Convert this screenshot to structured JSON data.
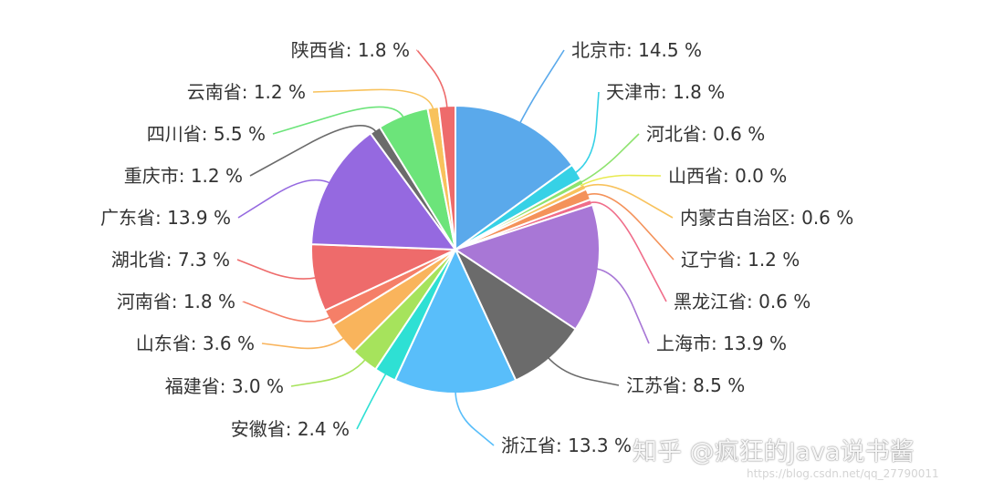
{
  "chart_data": {
    "type": "pie",
    "start_angle_deg": 90,
    "direction": "clockwise",
    "slices": [
      {
        "name": "北京市",
        "value": 14.5,
        "label": "北京市: 14.5 %",
        "color": "#5aa9eb"
      },
      {
        "name": "天津市",
        "value": 1.8,
        "label": "天津市: 1.8 %",
        "color": "#36d1e6"
      },
      {
        "name": "河北省",
        "value": 0.6,
        "label": "河北省: 0.6 %",
        "color": "#8ee36f"
      },
      {
        "name": "山西省",
        "value": 0.0,
        "label": "山西省: 0.0 %",
        "color": "#e8ea4f"
      },
      {
        "name": "内蒙古自治区",
        "value": 0.6,
        "label": "内蒙古自治区: 0.6 %",
        "color": "#f8c25c"
      },
      {
        "name": "辽宁省",
        "value": 1.2,
        "label": "辽宁省: 1.2 %",
        "color": "#f4925a"
      },
      {
        "name": "黑龙江省",
        "value": 0.6,
        "label": "黑龙江省: 0.6 %",
        "color": "#f06d8a"
      },
      {
        "name": "上海市",
        "value": 13.9,
        "label": "上海市: 13.9 %",
        "color": "#a877d6"
      },
      {
        "name": "江苏省",
        "value": 8.5,
        "label": "江苏省: 8.5 %",
        "color": "#6b6b6b"
      },
      {
        "name": "浙江省",
        "value": 13.3,
        "label": "浙江省: 13.3 %",
        "color": "#59befa"
      },
      {
        "name": "安徽省",
        "value": 2.4,
        "label": "安徽省: 2.4 %",
        "color": "#2ee0d4"
      },
      {
        "name": "福建省",
        "value": 3.0,
        "label": "福建省: 3.0 %",
        "color": "#a6e35c"
      },
      {
        "name": "山东省",
        "value": 3.6,
        "label": "山东省: 3.6 %",
        "color": "#f9b45c"
      },
      {
        "name": "河南省",
        "value": 1.8,
        "label": "河南省: 1.8 %",
        "color": "#f57f68"
      },
      {
        "name": "湖北省",
        "value": 7.3,
        "label": "湖北省: 7.3 %",
        "color": "#ee6b6b"
      },
      {
        "name": "广东省",
        "value": 13.9,
        "label": "广东省: 13.9 %",
        "color": "#9569e0"
      },
      {
        "name": "重庆市",
        "value": 1.2,
        "label": "重庆市: 1.2 %",
        "color": "#6b6b6b"
      },
      {
        "name": "四川省",
        "value": 5.5,
        "label": "四川省: 5.5 %",
        "color": "#6ce47a"
      },
      {
        "name": "云南省",
        "value": 1.2,
        "label": "云南省: 1.2 %",
        "color": "#f8c25c"
      },
      {
        "name": "陕西省",
        "value": 1.8,
        "label": "陕西省: 1.8 %",
        "color": "#ee6b6b"
      }
    ]
  },
  "watermark": {
    "text": "知乎 @疯狂的Java说书酱",
    "url": "https://blog.csdn.net/qq_27790011"
  }
}
